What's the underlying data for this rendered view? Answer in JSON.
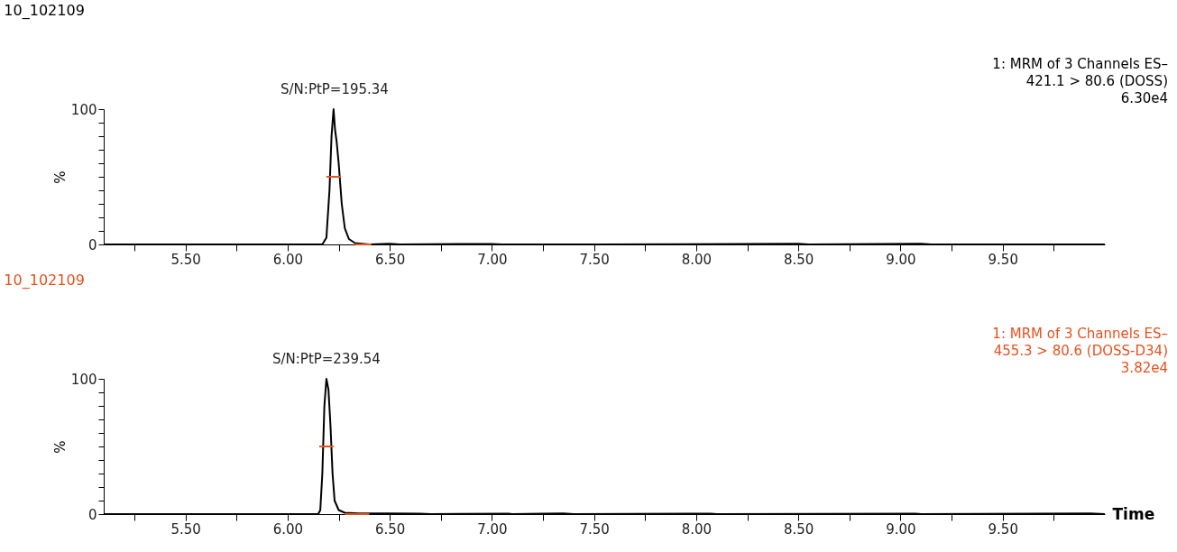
{
  "chart_data": [
    {
      "type": "line",
      "title": "10_102109",
      "ylabel": "%",
      "grid": false,
      "marker": "none",
      "line_style": "solid",
      "annotations": [
        {
          "text": "S/N:PtP=195.34",
          "x": 6.23,
          "y": 100
        },
        "1: MRM of 3 Channels ES–",
        "421.1 > 80.6 (DOSS)",
        "6.30e4"
      ],
      "xlim": [
        5.1,
        10.0
      ],
      "xticks": [
        {
          "value": 5.25,
          "label": null
        },
        {
          "value": 5.5,
          "label": "5.50"
        },
        {
          "value": 5.75,
          "label": null
        },
        {
          "value": 6.0,
          "label": "6.00"
        },
        {
          "value": 6.25,
          "label": null
        },
        {
          "value": 6.5,
          "label": "6.50"
        },
        {
          "value": 6.75,
          "label": null
        },
        {
          "value": 7.0,
          "label": "7.00"
        },
        {
          "value": 7.25,
          "label": null
        },
        {
          "value": 7.5,
          "label": "7.50"
        },
        {
          "value": 7.75,
          "label": null
        },
        {
          "value": 8.0,
          "label": "8.00"
        },
        {
          "value": 8.25,
          "label": null
        },
        {
          "value": 8.5,
          "label": "8.50"
        },
        {
          "value": 8.75,
          "label": null
        },
        {
          "value": 9.0,
          "label": "9.00"
        },
        {
          "value": 9.25,
          "label": null
        },
        {
          "value": 9.5,
          "label": "9.50"
        },
        {
          "value": 9.75,
          "label": null
        }
      ],
      "ylim": [
        0,
        100
      ],
      "yticks": [
        0,
        {
          "value": 10,
          "label": null
        },
        {
          "value": 20,
          "label": null
        },
        {
          "value": 30,
          "label": null
        },
        {
          "value": 40,
          "label": null
        },
        {
          "value": 50,
          "label": null
        },
        {
          "value": 60,
          "label": null
        },
        {
          "value": 70,
          "label": null
        },
        {
          "value": 80,
          "label": null
        },
        {
          "value": 90,
          "label": null
        },
        100
      ],
      "series": [
        {
          "color": "#000000",
          "x": [
            5.1,
            6.17,
            6.19,
            6.205,
            6.215,
            6.225,
            6.232,
            6.24,
            6.25,
            6.265,
            6.28,
            6.3,
            6.33,
            6.4,
            6.5,
            6.55,
            7.0,
            7.05,
            7.5,
            8.5,
            8.55,
            9.1,
            9.15,
            10.0
          ],
          "values": [
            0,
            0,
            5,
            40,
            80,
            100,
            85,
            76,
            60,
            30,
            12,
            4,
            1,
            0,
            0.5,
            0,
            0.4,
            0,
            0,
            0.5,
            0,
            0.5,
            0,
            0
          ]
        },
        {
          "color": "#e8501e",
          "x": [
            6.19,
            6.26
          ],
          "values": [
            50,
            50
          ]
        },
        {
          "color": "#e8501e",
          "x": [
            6.33,
            6.41
          ],
          "values": [
            0,
            0
          ]
        }
      ]
    },
    {
      "type": "line",
      "title": "10_102109",
      "ylabel": "%",
      "xlabel": "Time",
      "grid": false,
      "marker": "none",
      "line_style": "solid",
      "annotations": [
        {
          "text": "S/N:PtP=239.54",
          "x": 6.19,
          "y": 100
        },
        "1: MRM of 3 Channels ES–",
        "455.3 > 80.6 (DOSS-D34)",
        "3.82e4"
      ],
      "xlim": [
        5.1,
        10.0
      ],
      "xticks": [
        {
          "value": 5.25,
          "label": null
        },
        {
          "value": 5.5,
          "label": "5.50"
        },
        {
          "value": 5.75,
          "label": null
        },
        {
          "value": 6.0,
          "label": "6.00"
        },
        {
          "value": 6.25,
          "label": null
        },
        {
          "value": 6.5,
          "label": "6.50"
        },
        {
          "value": 6.75,
          "label": null
        },
        {
          "value": 7.0,
          "label": "7.00"
        },
        {
          "value": 7.25,
          "label": null
        },
        {
          "value": 7.5,
          "label": "7.50"
        },
        {
          "value": 7.75,
          "label": null
        },
        {
          "value": 8.0,
          "label": "8.00"
        },
        {
          "value": 8.25,
          "label": null
        },
        {
          "value": 8.5,
          "label": "8.50"
        },
        {
          "value": 8.75,
          "label": null
        },
        {
          "value": 9.0,
          "label": "9.00"
        },
        {
          "value": 9.25,
          "label": null
        },
        {
          "value": 9.5,
          "label": "9.50"
        },
        {
          "value": 9.75,
          "label": null
        }
      ],
      "ylim": [
        0,
        100
      ],
      "yticks": [
        0,
        {
          "value": 10,
          "label": null
        },
        {
          "value": 20,
          "label": null
        },
        {
          "value": 30,
          "label": null
        },
        {
          "value": 40,
          "label": null
        },
        {
          "value": 50,
          "label": null
        },
        {
          "value": 60,
          "label": null
        },
        {
          "value": 70,
          "label": null
        },
        {
          "value": 80,
          "label": null
        },
        {
          "value": 90,
          "label": null
        },
        100
      ],
      "series": [
        {
          "color": "#000000",
          "x": [
            5.1,
            6.15,
            6.16,
            6.17,
            6.18,
            6.19,
            6.2,
            6.21,
            6.22,
            6.23,
            6.25,
            6.28,
            6.35,
            6.5,
            6.65,
            6.7,
            7.08,
            7.1,
            7.25,
            7.35,
            7.4,
            8.07,
            8.1,
            9.07,
            9.1,
            9.93,
            10.0
          ],
          "values": [
            0,
            0,
            3,
            30,
            80,
            100,
            92,
            65,
            30,
            10,
            3,
            1,
            0.5,
            0.5,
            0.3,
            0,
            0.4,
            0,
            0.3,
            0.5,
            0,
            0.4,
            0,
            0.4,
            0,
            0.5,
            0
          ]
        },
        {
          "color": "#e8501e",
          "x": [
            6.155,
            6.225
          ],
          "values": [
            50,
            50
          ]
        },
        {
          "color": "#e8501e",
          "x": [
            6.28,
            6.4
          ],
          "values": [
            0,
            0
          ]
        }
      ]
    }
  ]
}
